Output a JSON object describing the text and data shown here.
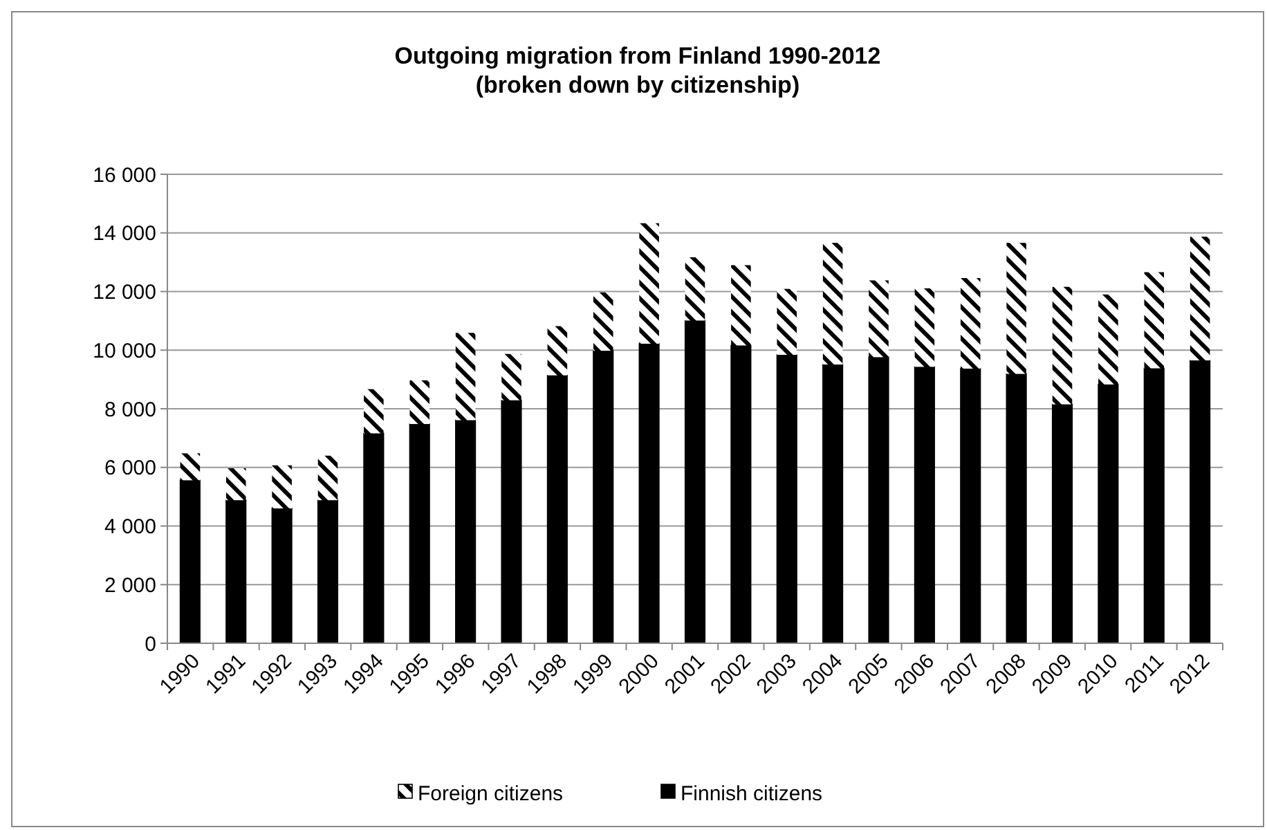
{
  "chart_data": {
    "type": "bar",
    "stacked": true,
    "title": "Outgoing migration from Finland 1990-2012\n(broken down by citizenship)",
    "categories": [
      "1990",
      "1991",
      "1992",
      "1993",
      "1994",
      "1995",
      "1996",
      "1997",
      "1998",
      "1999",
      "2000",
      "2001",
      "2002",
      "2003",
      "2004",
      "2005",
      "2006",
      "2007",
      "2008",
      "2009",
      "2010",
      "2011",
      "2012"
    ],
    "series": [
      {
        "name": "Finnish citizens",
        "color": "#000000",
        "values": [
          5560,
          4880,
          4600,
          4880,
          7160,
          7480,
          7610,
          8290,
          9140,
          9980,
          10220,
          11010,
          10160,
          9840,
          9510,
          9760,
          9430,
          9370,
          9190,
          8150,
          8830,
          9380,
          9650
        ]
      },
      {
        "name": "Foreign citizens",
        "color": "#ffffff",
        "values": [
          920,
          1090,
          1470,
          1520,
          1510,
          1490,
          2980,
          1580,
          1680,
          1990,
          4110,
          2160,
          2740,
          2250,
          4150,
          2620,
          2680,
          3090,
          4470,
          4010,
          3070,
          3280,
          4220
        ]
      }
    ],
    "ylim": [
      0,
      16000
    ],
    "yticks": [
      {
        "value": 0,
        "label": "0"
      },
      {
        "value": 2000,
        "label": "2 000"
      },
      {
        "value": 4000,
        "label": "4 000"
      },
      {
        "value": 6000,
        "label": "6 000"
      },
      {
        "value": 8000,
        "label": "8 000"
      },
      {
        "value": 10000,
        "label": "10 000"
      },
      {
        "value": 12000,
        "label": "12 000"
      },
      {
        "value": 14000,
        "label": "14 000"
      },
      {
        "value": 16000,
        "label": "16 000"
      }
    ],
    "grid": "y",
    "legend": "bottom"
  }
}
